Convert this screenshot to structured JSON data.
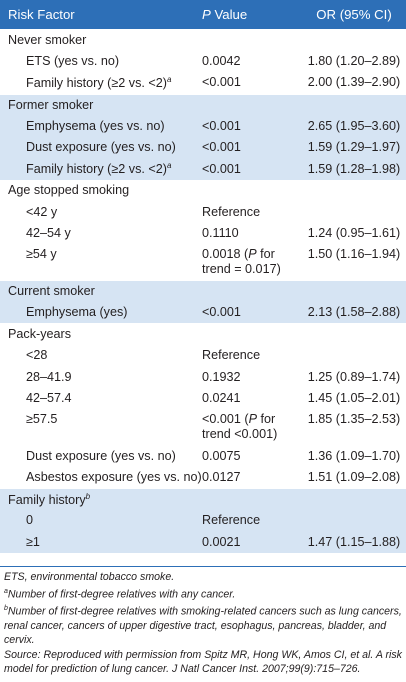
{
  "header": {
    "risk_factor": "Risk Factor",
    "p_prefix": "P",
    "p_value": " Value",
    "or": "OR (95% CI)"
  },
  "groups": {
    "never": {
      "title": "Never smoker",
      "ets": {
        "label": "ETS (yes vs. no)",
        "p": "0.0042",
        "or": "1.80 (1.20–2.89)"
      },
      "fam": {
        "label": "Family history (≥2 vs. <2)",
        "sup": "a",
        "p": "<0.001",
        "or": "2.00 (1.39–2.90)"
      }
    },
    "former": {
      "title": "Former smoker",
      "emph": {
        "label": "Emphysema (yes vs. no)",
        "p": "<0.001",
        "or": "2.65 (1.95–3.60)"
      },
      "dust": {
        "label": "Dust exposure (yes vs. no)",
        "p": "<0.001",
        "or": "1.59 (1.29–1.97)"
      },
      "fam": {
        "label": "Family history (≥2 vs. <2)",
        "sup": "a",
        "p": "<0.001",
        "or": "1.59 (1.28–1.98)"
      }
    },
    "age": {
      "title": "Age stopped smoking",
      "r1": {
        "label": "<42 y",
        "p": "Reference"
      },
      "r2": {
        "label": "42–54 y",
        "p": "0.1110",
        "or": "1.24 (0.95–1.61)"
      },
      "r3": {
        "label": "≥54 y",
        "p_line1": "0.0018 (",
        "p_ital": "P",
        "p_line1b": " for",
        "p_line2": "trend = 0.017)",
        "or": "1.50 (1.16–1.94)"
      }
    },
    "current": {
      "title": "Current smoker",
      "emph": {
        "label": "Emphysema (yes)",
        "p": "<0.001",
        "or": "2.13 (1.58–2.88)"
      }
    },
    "pack": {
      "title": "Pack-years",
      "r1": {
        "label": "<28",
        "p": "Reference"
      },
      "r2": {
        "label": "28–41.9",
        "p": "0.1932",
        "or": "1.25 (0.89–1.74)"
      },
      "r3": {
        "label": "42–57.4",
        "p": "0.0241",
        "or": "1.45 (1.05–2.01)"
      },
      "r4": {
        "label": "≥57.5",
        "p_line1": "<0.001 (",
        "p_ital": "P",
        "p_line1b": " for",
        "p_line2": "trend <0.001)",
        "or": "1.85 (1.35–2.53)"
      },
      "dust": {
        "label": "Dust exposure (yes vs. no)",
        "p": "0.0075",
        "or": "1.36 (1.09–1.70)"
      },
      "asb": {
        "label": "Asbestos exposure (yes vs. no)",
        "p": "0.0127",
        "or": "1.51 (1.09–2.08)"
      }
    },
    "family": {
      "title": "Family history",
      "sup": "b",
      "r1": {
        "label": "0",
        "p": "Reference"
      },
      "r2": {
        "label": "≥1",
        "p": "0.0021",
        "or": "1.47 (1.15–1.88)"
      }
    }
  },
  "notes": {
    "ets": "ETS, environmental tobacco smoke.",
    "a_mark": "a",
    "a": "Number of first-degree relatives with any cancer.",
    "b_mark": "b",
    "b": "Number of first-degree relatives with smoking-related cancers such as lung cancers, renal cancer, cancers of upper digestive tract, esophagus, pancreas, bladder, and cervix.",
    "source": "Source: Reproduced with permission from Spitz MR, Hong WK, Amos CI, et al. A risk model for prediction of lung cancer. J Natl Cancer Inst. 2007;99(9):715–726."
  },
  "colors": {
    "header_bg": "#2d6fb7",
    "shade_bg": "#d6e4f3",
    "text": "#231f20"
  }
}
